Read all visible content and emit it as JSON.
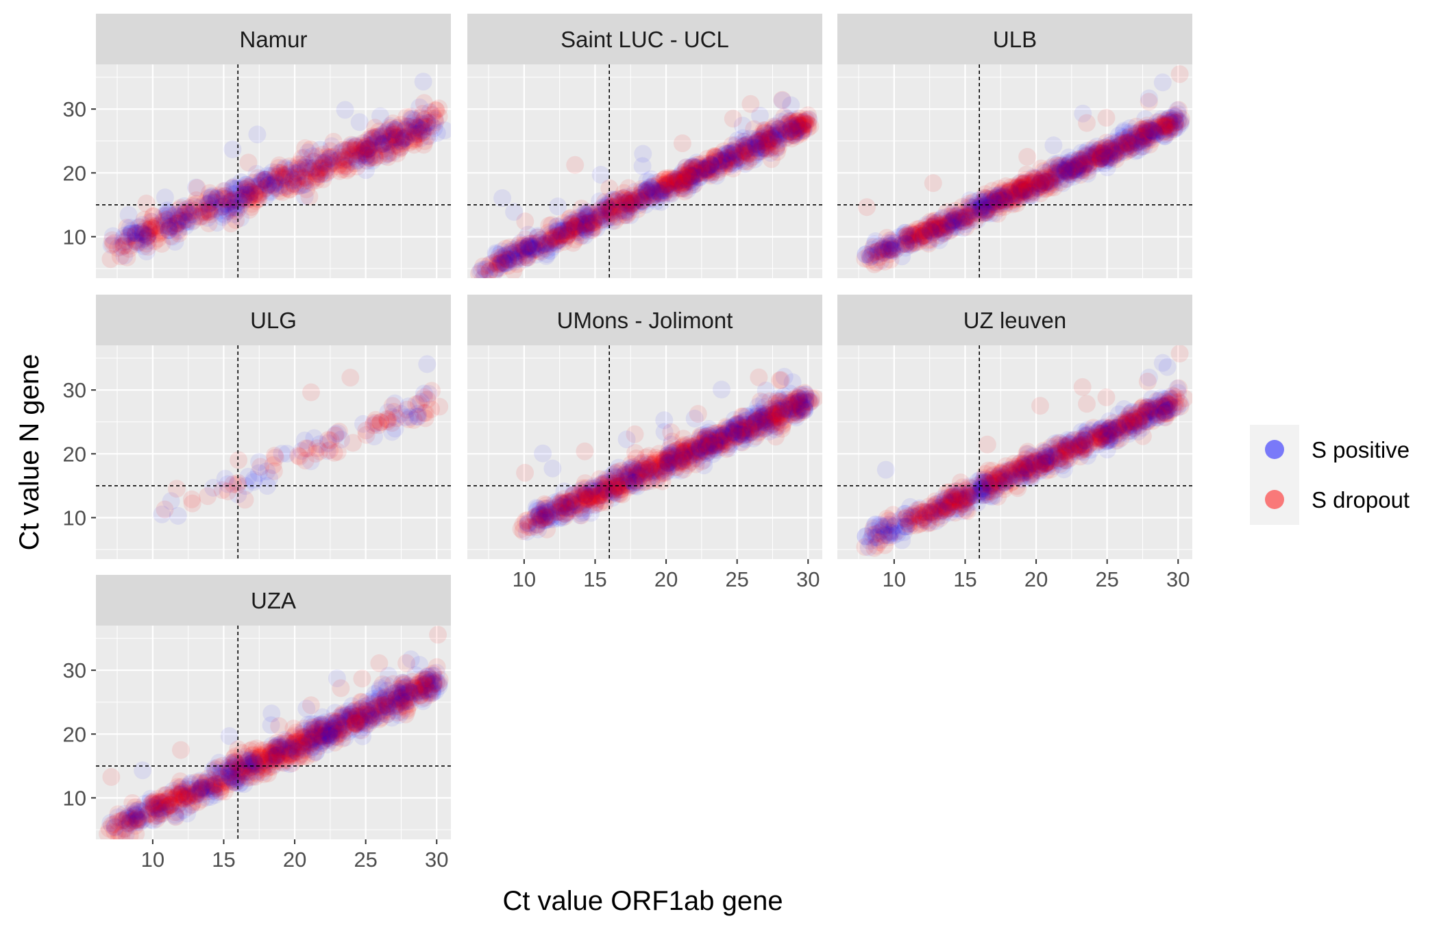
{
  "chart_data": {
    "type": "scatter",
    "title": "",
    "xlabel": "Ct value ORF1ab gene",
    "ylabel": "Ct value N gene",
    "xlim": [
      6,
      31
    ],
    "ylim": [
      3.5,
      37
    ],
    "x_ticks": [
      10,
      15,
      20,
      25,
      30
    ],
    "y_ticks": [
      10,
      20,
      30
    ],
    "reference_lines": {
      "vertical_x": 16,
      "horizontal_y": 15,
      "style": "dashed"
    },
    "grid": true,
    "legend_position": "right",
    "legend": [
      {
        "name": "S positive",
        "color": "#0000ff"
      },
      {
        "name": "S dropout",
        "color": "#ff0000"
      }
    ],
    "series_colors": {
      "S positive": "#0000ff",
      "S dropout": "#ff0000"
    },
    "panels": [
      {
        "name": "Namur",
        "point_count": 700,
        "x_range": [
          7,
          30
        ],
        "slope": 0.85,
        "intercept": 2.5,
        "spread": 1.3
      },
      {
        "name": "Saint LUC - UCL",
        "point_count": 900,
        "x_range": [
          7,
          30
        ],
        "slope": 1.0,
        "intercept": -2.2,
        "spread": 0.9
      },
      {
        "name": "ULB",
        "point_count": 900,
        "x_range": [
          8,
          30
        ],
        "slope": 0.98,
        "intercept": -1.3,
        "spread": 0.8
      },
      {
        "name": "ULG",
        "point_count": 110,
        "x_range": [
          10,
          30
        ],
        "slope": 0.93,
        "intercept": 0.7,
        "spread": 1.2
      },
      {
        "name": "UMons - Jolimont",
        "point_count": 900,
        "x_range": [
          10,
          30
        ],
        "slope": 0.97,
        "intercept": -0.8,
        "spread": 1.0
      },
      {
        "name": "UZ leuven",
        "point_count": 800,
        "x_range": [
          8,
          30
        ],
        "slope": 1.0,
        "intercept": -1.7,
        "spread": 0.9
      },
      {
        "name": "UZA",
        "point_count": 950,
        "x_range": [
          7,
          30
        ],
        "slope": 1.0,
        "intercept": -1.9,
        "spread": 1.1
      }
    ]
  }
}
